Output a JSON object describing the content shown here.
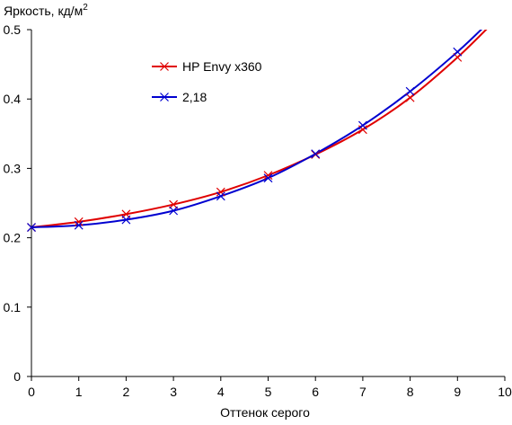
{
  "chart_data": {
    "type": "line",
    "ylabel": "Яркость, кд/м",
    "ylabel_superscript": "2",
    "xlabel": "Оттенок серого",
    "xlim": [
      0,
      10
    ],
    "ylim": [
      0,
      0.5
    ],
    "x_ticks": [
      0,
      1,
      2,
      3,
      4,
      5,
      6,
      7,
      8,
      9,
      10
    ],
    "y_ticks": [
      0,
      0.1,
      0.2,
      0.3,
      0.4,
      0.5
    ],
    "x_tick_labels": [
      "0",
      "1",
      "2",
      "3",
      "4",
      "5",
      "6",
      "7",
      "8",
      "9",
      "10"
    ],
    "y_tick_labels": [
      "0",
      "0.1",
      "0.2",
      "0.3",
      "0.4",
      "0.5"
    ],
    "grid": false,
    "legend_position": "top-left",
    "series": [
      {
        "name": "HP Envy x360",
        "color": "#e00000",
        "marker": "x",
        "x": [
          0,
          1,
          2,
          3,
          4,
          5,
          6,
          7,
          8,
          9,
          9.75
        ],
        "y": [
          0.215,
          0.223,
          0.234,
          0.248,
          0.266,
          0.29,
          0.32,
          0.356,
          0.402,
          0.46,
          0.51
        ]
      },
      {
        "name": "2,18",
        "color": "#0000d0",
        "marker": "x",
        "x": [
          0,
          1,
          2,
          3,
          4,
          5,
          6,
          7,
          8,
          9,
          9.65
        ],
        "y": [
          0.215,
          0.218,
          0.226,
          0.239,
          0.26,
          0.286,
          0.321,
          0.362,
          0.411,
          0.468,
          0.51
        ]
      }
    ]
  }
}
